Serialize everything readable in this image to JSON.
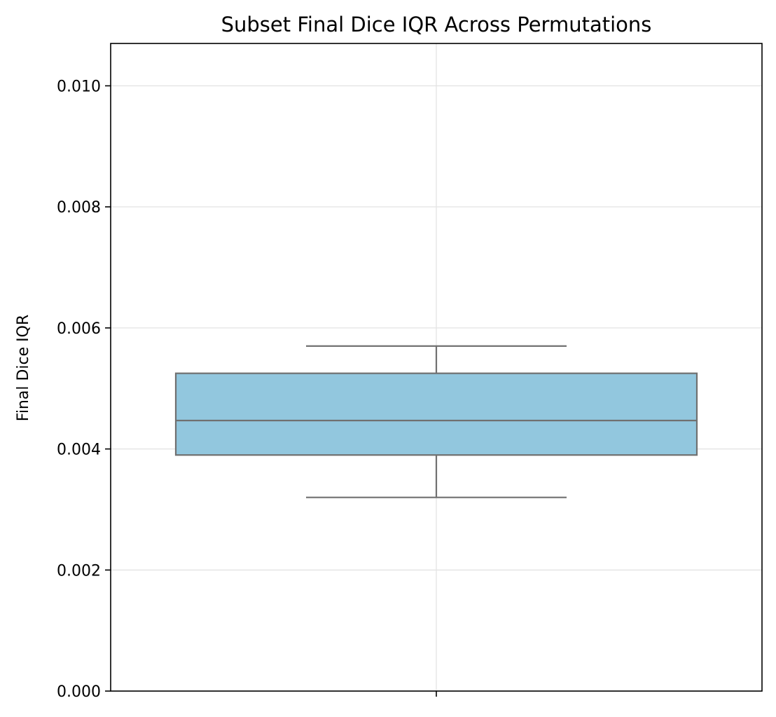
{
  "chart_data": {
    "type": "box",
    "title": "Subset Final Dice IQR Across Permutations",
    "ylabel": "Final Dice IQR",
    "xlabel": "",
    "ylim": [
      0,
      0.0107
    ],
    "yticks": [
      {
        "value": 0.0,
        "label": "0.000"
      },
      {
        "value": 0.002,
        "label": "0.002"
      },
      {
        "value": 0.004,
        "label": "0.004"
      },
      {
        "value": 0.006,
        "label": "0.006"
      },
      {
        "value": 0.008,
        "label": "0.008"
      },
      {
        "value": 0.01,
        "label": "0.010"
      }
    ],
    "grid": true,
    "boxes": [
      {
        "whisker_low": 0.0032,
        "q1": 0.0039,
        "median": 0.00447,
        "q3": 0.00525,
        "whisker_high": 0.0057
      }
    ],
    "colors": {
      "box_fill": "#92c7de",
      "box_edge": "#707070",
      "grid": "#e3e3e3",
      "axis": "#000000"
    }
  }
}
